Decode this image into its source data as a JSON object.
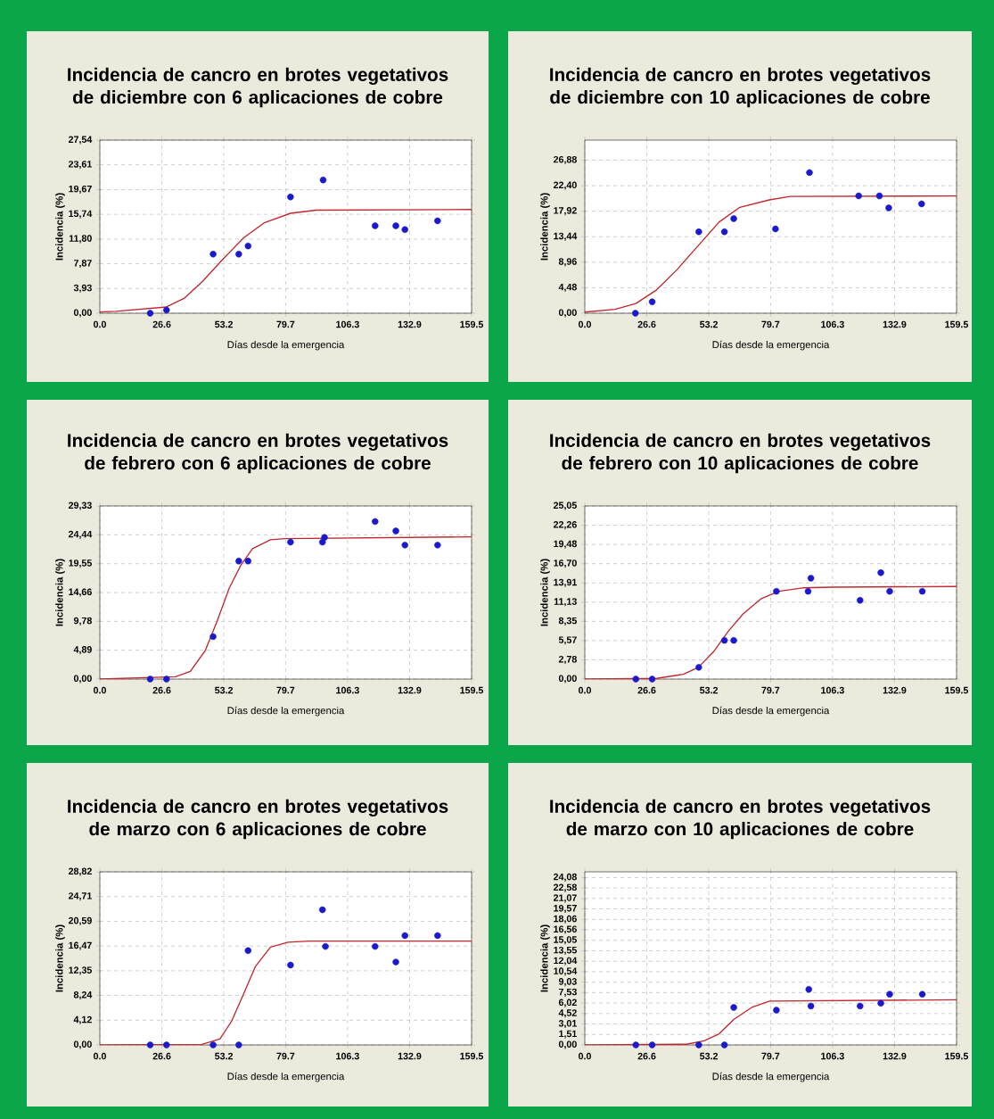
{
  "chart_data": [
    {
      "type": "scatter",
      "title": "Incidencia de cancro en brotes vegetativos de diciembre con 6 aplicaciones de cobre",
      "xlabel": "Días desde la emergencia",
      "ylabel": "Incidencia (%)",
      "grid": true,
      "xlim": [
        0,
        159.5
      ],
      "ylim": [
        0,
        27.54
      ],
      "xticks": [
        {
          "value": 0,
          "label": "0.0"
        },
        {
          "value": 26.6,
          "label": "26.6"
        },
        {
          "value": 53.2,
          "label": "53.2"
        },
        {
          "value": 79.7,
          "label": "79.7"
        },
        {
          "value": 106.3,
          "label": "106.3"
        },
        {
          "value": 132.9,
          "label": "132.9"
        },
        {
          "value": 159.5,
          "label": "159.5"
        }
      ],
      "yticks": [
        {
          "value": 0,
          "label": "0,00"
        },
        {
          "value": 3.93,
          "label": "3,93"
        },
        {
          "value": 7.87,
          "label": "7,87"
        },
        {
          "value": 11.8,
          "label": "11,80"
        },
        {
          "value": 15.74,
          "label": "15,74"
        },
        {
          "value": 19.67,
          "label": "19,67"
        },
        {
          "value": 23.61,
          "label": "23,61"
        },
        {
          "value": 27.54,
          "label": "27,54"
        }
      ],
      "series": [
        {
          "color": "#1a1acc",
          "marker": "circle",
          "x": [
            21.6,
            28.6,
            48.6,
            59.6,
            63.6,
            81.8,
            95.8,
            118.1,
            127.0,
            130.9,
            144.9
          ],
          "values": [
            0,
            0.5,
            9.4,
            9.4,
            10.7,
            18.5,
            21.2,
            13.9,
            13.9,
            13.3,
            14.7
          ]
        },
        {
          "type": "line",
          "color": "#c0282e",
          "marker": "none",
          "x": [
            0,
            7,
            28.6,
            36.3,
            43.9,
            52.8,
            61.7,
            70.6,
            81.8,
            92.9,
            159.5
          ],
          "values": [
            0.2,
            0.3,
            1.0,
            2.4,
            5.0,
            8.6,
            12.0,
            14.4,
            15.9,
            16.4,
            16.5
          ]
        }
      ]
    },
    {
      "type": "scatter",
      "title": "Incidencia de cancro en brotes vegetativos de diciembre con 10 aplicaciones de cobre",
      "xlabel": "Días desde la emergencia",
      "ylabel": "Incidencia (%)",
      "grid": true,
      "xlim": [
        0,
        159.5
      ],
      "ylim": [
        0,
        30.4
      ],
      "xticks": [
        {
          "value": 0,
          "label": "0.0"
        },
        {
          "value": 26.6,
          "label": "26.6"
        },
        {
          "value": 53.2,
          "label": "53.2"
        },
        {
          "value": 79.7,
          "label": "79.7"
        },
        {
          "value": 106.3,
          "label": "106.3"
        },
        {
          "value": 132.9,
          "label": "132.9"
        },
        {
          "value": 159.5,
          "label": "159.5"
        }
      ],
      "yticks": [
        {
          "value": 0,
          "label": "0,00"
        },
        {
          "value": 4.48,
          "label": "4,48"
        },
        {
          "value": 8.96,
          "label": "8,96"
        },
        {
          "value": 13.44,
          "label": "13,44"
        },
        {
          "value": 17.92,
          "label": "17,92"
        },
        {
          "value": 22.4,
          "label": "22,40"
        },
        {
          "value": 26.88,
          "label": "26,88"
        }
      ],
      "series": [
        {
          "color": "#1a1acc",
          "marker": "circle",
          "x": [
            21.7,
            28.9,
            48.9,
            59.9,
            63.9,
            81.8,
            96.4,
            117.5,
            126.4,
            130.4,
            144.5
          ],
          "values": [
            0,
            2.0,
            14.3,
            14.3,
            16.6,
            14.8,
            24.7,
            20.6,
            20.6,
            18.5,
            19.2
          ]
        },
        {
          "type": "line",
          "color": "#c0282e",
          "marker": "none",
          "x": [
            0,
            13,
            21.9,
            30.8,
            39.7,
            48.7,
            57.6,
            66.5,
            79.2,
            88.1,
            159.5
          ],
          "values": [
            0.2,
            0.7,
            1.7,
            4.1,
            7.7,
            11.9,
            16.0,
            18.6,
            19.9,
            20.5,
            20.6
          ]
        }
      ]
    },
    {
      "type": "scatter",
      "title": "Incidencia de cancro en brotes vegetativos de febrero con 6 aplicaciones de cobre",
      "xlabel": "Días desde la emergencia",
      "ylabel": "Incidencia (%)",
      "grid": true,
      "xlim": [
        0,
        159.5
      ],
      "ylim": [
        0,
        29.33
      ],
      "xticks": [
        {
          "value": 0,
          "label": "0.0"
        },
        {
          "value": 26.6,
          "label": "26.6"
        },
        {
          "value": 53.2,
          "label": "53.2"
        },
        {
          "value": 79.7,
          "label": "79.7"
        },
        {
          "value": 106.3,
          "label": "106.3"
        },
        {
          "value": 132.9,
          "label": "132.9"
        },
        {
          "value": 159.5,
          "label": "159.5"
        }
      ],
      "yticks": [
        {
          "value": 0,
          "label": "0,00"
        },
        {
          "value": 4.89,
          "label": "4,89"
        },
        {
          "value": 9.78,
          "label": "9,78"
        },
        {
          "value": 14.66,
          "label": "14,66"
        },
        {
          "value": 19.55,
          "label": "19,55"
        },
        {
          "value": 24.44,
          "label": "24,44"
        },
        {
          "value": 29.33,
          "label": "29,33"
        }
      ],
      "series": [
        {
          "color": "#1a1acc",
          "marker": "circle",
          "x": [
            21.6,
            28.6,
            48.6,
            59.6,
            63.6,
            81.8,
            95.5,
            96.4,
            118.1,
            127.0,
            130.9,
            144.9
          ],
          "values": [
            0,
            0,
            7.2,
            20.0,
            20.0,
            23.2,
            23.2,
            24.0,
            26.7,
            25.1,
            22.7,
            22.7
          ]
        },
        {
          "type": "line",
          "color": "#c0282e",
          "marker": "none",
          "x": [
            0,
            32.5,
            38.8,
            45.2,
            50.3,
            55.4,
            60.5,
            65.5,
            73.2,
            79.6,
            159.5
          ],
          "values": [
            0,
            0.4,
            1.3,
            4.8,
            9.8,
            15.3,
            19.3,
            22.1,
            23.6,
            23.8,
            24.1
          ]
        }
      ]
    },
    {
      "type": "scatter",
      "title": "Incidencia de cancro en brotes vegetativos de febrero con 10 aplicaciones de cobre",
      "xlabel": "Días desde la emergencia",
      "ylabel": "Incidencia (%)",
      "grid": true,
      "xlim": [
        0,
        159.5
      ],
      "ylim": [
        0,
        25.05
      ],
      "xticks": [
        {
          "value": 0,
          "label": "0.0"
        },
        {
          "value": 26.6,
          "label": "26.6"
        },
        {
          "value": 53.2,
          "label": "53.2"
        },
        {
          "value": 79.7,
          "label": "79.7"
        },
        {
          "value": 106.3,
          "label": "106.3"
        },
        {
          "value": 132.9,
          "label": "132.9"
        },
        {
          "value": 159.5,
          "label": "159.5"
        }
      ],
      "yticks": [
        {
          "value": 0,
          "label": "0,00"
        },
        {
          "value": 2.78,
          "label": "2,78"
        },
        {
          "value": 5.57,
          "label": "5,57"
        },
        {
          "value": 8.35,
          "label": "8,35"
        },
        {
          "value": 11.13,
          "label": "11,13"
        },
        {
          "value": 13.91,
          "label": "13,91"
        },
        {
          "value": 16.7,
          "label": "16,70"
        },
        {
          "value": 19.48,
          "label": "19,48"
        },
        {
          "value": 22.26,
          "label": "22,26"
        },
        {
          "value": 25.05,
          "label": "25,05"
        }
      ],
      "series": [
        {
          "color": "#1a1acc",
          "marker": "circle",
          "x": [
            21.9,
            28.9,
            48.9,
            59.9,
            63.9,
            82.2,
            95.8,
            97.0,
            118.1,
            127.0,
            130.8,
            144.8
          ],
          "values": [
            0,
            0,
            1.7,
            5.6,
            5.6,
            12.7,
            12.7,
            14.6,
            11.4,
            15.4,
            12.7,
            12.7
          ]
        },
        {
          "type": "line",
          "color": "#c0282e",
          "marker": "none",
          "x": [
            0,
            30.8,
            42.3,
            48.7,
            55.1,
            61.5,
            67.8,
            75.5,
            83.2,
            93.4,
            106.0,
            159.5
          ],
          "values": [
            0,
            0.1,
            0.7,
            1.7,
            3.9,
            6.9,
            9.4,
            11.6,
            12.7,
            13.2,
            13.3,
            13.4
          ]
        }
      ]
    },
    {
      "type": "scatter",
      "title": "Incidencia de cancro en brotes vegetativos de marzo con 6 aplicaciones de cobre",
      "xlabel": "Días desde la emergencia",
      "ylabel": "Incidencia (%)",
      "grid": true,
      "xlim": [
        0,
        159.5
      ],
      "ylim": [
        0,
        28.82
      ],
      "xticks": [
        {
          "value": 0,
          "label": "0.0"
        },
        {
          "value": 26.6,
          "label": "26.6"
        },
        {
          "value": 53.2,
          "label": "53.2"
        },
        {
          "value": 79.7,
          "label": "79.7"
        },
        {
          "value": 106.3,
          "label": "106.3"
        },
        {
          "value": 132.9,
          "label": "132.9"
        },
        {
          "value": 159.5,
          "label": "159.5"
        }
      ],
      "yticks": [
        {
          "value": 0,
          "label": "0,00"
        },
        {
          "value": 4.12,
          "label": "4,12"
        },
        {
          "value": 8.24,
          "label": "8,24"
        },
        {
          "value": 12.35,
          "label": "12,35"
        },
        {
          "value": 16.47,
          "label": "16,47"
        },
        {
          "value": 20.59,
          "label": "20,59"
        },
        {
          "value": 24.71,
          "label": "24,71"
        },
        {
          "value": 28.82,
          "label": "28,82"
        }
      ],
      "series": [
        {
          "color": "#1a1acc",
          "marker": "circle",
          "x": [
            21.6,
            28.6,
            48.6,
            59.6,
            63.6,
            81.8,
            95.5,
            96.8,
            118.1,
            127.0,
            130.9,
            144.9
          ],
          "values": [
            0,
            0,
            0,
            0,
            15.7,
            13.3,
            22.5,
            16.4,
            16.4,
            13.8,
            18.2,
            18.2
          ]
        },
        {
          "type": "line",
          "color": "#c0282e",
          "marker": "none",
          "x": [
            0,
            43.8,
            51.5,
            56.6,
            61.7,
            66.8,
            73.2,
            80.8,
            89.8,
            159.5
          ],
          "values": [
            0,
            0.1,
            1.0,
            4.0,
            8.5,
            13.1,
            16.3,
            17.1,
            17.3,
            17.3
          ]
        }
      ]
    },
    {
      "type": "scatter",
      "title": "Incidencia de cancro en brotes vegetativos de marzo con 10 aplicaciones de cobre",
      "xlabel": "Días desde la emergencia",
      "ylabel": "Incidencia (%)",
      "grid": true,
      "xlim": [
        0,
        159.5
      ],
      "ylim": [
        0,
        24.9
      ],
      "xticks": [
        {
          "value": 0,
          "label": "0.0"
        },
        {
          "value": 26.6,
          "label": "26.6"
        },
        {
          "value": 53.2,
          "label": "53.2"
        },
        {
          "value": 79.7,
          "label": "79.7"
        },
        {
          "value": 106.3,
          "label": "106.3"
        },
        {
          "value": 132.9,
          "label": "132.9"
        },
        {
          "value": 159.5,
          "label": "159.5"
        }
      ],
      "yticks": [
        {
          "value": 0,
          "label": "0,00"
        },
        {
          "value": 1.51,
          "label": "1,51"
        },
        {
          "value": 3.01,
          "label": "3,01"
        },
        {
          "value": 4.52,
          "label": "4,52"
        },
        {
          "value": 6.02,
          "label": "6,02"
        },
        {
          "value": 7.53,
          "label": "7,53"
        },
        {
          "value": 9.03,
          "label": "9,03"
        },
        {
          "value": 10.54,
          "label": "10,54"
        },
        {
          "value": 12.04,
          "label": "12,04"
        },
        {
          "value": 13.55,
          "label": "13,55"
        },
        {
          "value": 15.05,
          "label": "15,05"
        },
        {
          "value": 16.56,
          "label": "16,56"
        },
        {
          "value": 18.06,
          "label": "18,06"
        },
        {
          "value": 19.57,
          "label": "19,57"
        },
        {
          "value": 21.07,
          "label": "21,07"
        },
        {
          "value": 22.58,
          "label": "22,58"
        },
        {
          "value": 24.08,
          "label": "24,08"
        }
      ],
      "series": [
        {
          "color": "#1a1acc",
          "marker": "circle",
          "x": [
            21.9,
            28.9,
            48.9,
            59.9,
            63.9,
            82.2,
            96.1,
            97.0,
            118.1,
            127.0,
            130.8,
            144.8
          ],
          "values": [
            0,
            0,
            0,
            0,
            5.4,
            5.0,
            8.0,
            5.6,
            5.6,
            6.0,
            7.3,
            7.3
          ]
        },
        {
          "type": "line",
          "color": "#c0282e",
          "marker": "none",
          "x": [
            0,
            43.6,
            51.2,
            57.6,
            64.0,
            71.6,
            79.3,
            159.5
          ],
          "values": [
            0,
            0.1,
            0.6,
            1.6,
            3.7,
            5.4,
            6.3,
            6.5
          ]
        }
      ]
    }
  ]
}
